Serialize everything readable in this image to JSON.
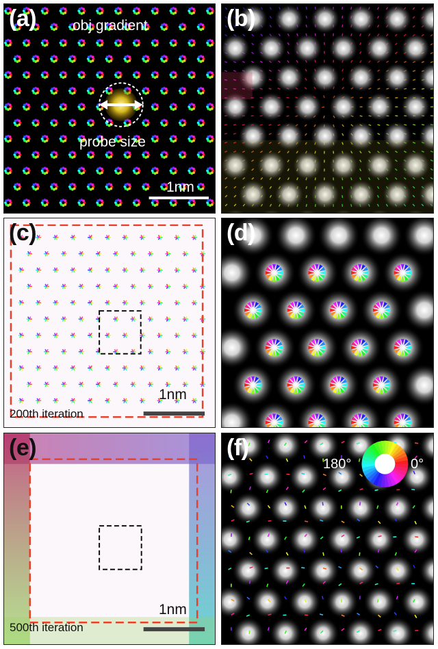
{
  "panels": {
    "a": {
      "label": "(a)",
      "title": "obj gradient",
      "probe_label": "probe size",
      "scale_label": "1nm"
    },
    "b": {
      "label": "(b)"
    },
    "c": {
      "label": "(c)",
      "scale_label": "1nm",
      "iteration": "200th iteration"
    },
    "d": {
      "label": "(d)"
    },
    "e": {
      "label": "(e)",
      "scale_label": "1nm",
      "iteration": "500th iteration"
    },
    "f": {
      "label": "(f)",
      "wheel_left": "180°",
      "wheel_right": "0°"
    }
  },
  "colors": {
    "red_dash": "#e8402a",
    "black_dash": "#111111",
    "dark_bg": "#000000",
    "light_bg": "#fbf7fb",
    "scale_bar_dark": "#ffffff",
    "scale_bar_light": "#444444",
    "probe": "#e0c020"
  }
}
